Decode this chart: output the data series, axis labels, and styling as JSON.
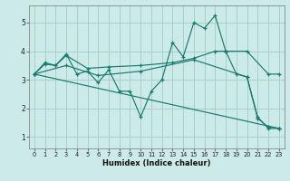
{
  "xlabel": "Humidex (Indice chaleur)",
  "bg_color": "#cceae8",
  "grid_color": "#aacfcc",
  "line_color": "#1a7a70",
  "xlim": [
    -0.5,
    23.5
  ],
  "ylim": [
    0.6,
    5.6
  ],
  "xticks": [
    0,
    1,
    2,
    3,
    4,
    5,
    6,
    7,
    8,
    9,
    10,
    11,
    12,
    13,
    14,
    15,
    16,
    17,
    18,
    19,
    20,
    21,
    22,
    23
  ],
  "yticks": [
    1,
    2,
    3,
    4,
    5
  ],
  "lines": [
    {
      "x": [
        0,
        1,
        2,
        3,
        4,
        5,
        6,
        7,
        8,
        9,
        10,
        11,
        12,
        13,
        14,
        15,
        16,
        17,
        18,
        19,
        20,
        21,
        22,
        23
      ],
      "y": [
        3.2,
        3.6,
        3.5,
        3.9,
        3.2,
        3.3,
        2.9,
        3.35,
        2.6,
        2.6,
        1.7,
        2.6,
        3.0,
        4.3,
        3.8,
        5.0,
        4.8,
        5.25,
        4.0,
        3.2,
        3.1,
        1.7,
        1.3,
        1.3
      ]
    },
    {
      "x": [
        0,
        1,
        2,
        3,
        5,
        7,
        10,
        13,
        15,
        17,
        18,
        20,
        22,
        23
      ],
      "y": [
        3.2,
        3.55,
        3.5,
        3.85,
        3.4,
        3.45,
        3.5,
        3.6,
        3.75,
        4.0,
        4.0,
        4.0,
        3.2,
        3.2
      ]
    },
    {
      "x": [
        0,
        23
      ],
      "y": [
        3.2,
        1.3
      ]
    },
    {
      "x": [
        0,
        3,
        6,
        10,
        15,
        20,
        21,
        22,
        23
      ],
      "y": [
        3.2,
        3.5,
        3.15,
        3.3,
        3.7,
        3.1,
        1.65,
        1.35,
        1.3
      ]
    }
  ]
}
